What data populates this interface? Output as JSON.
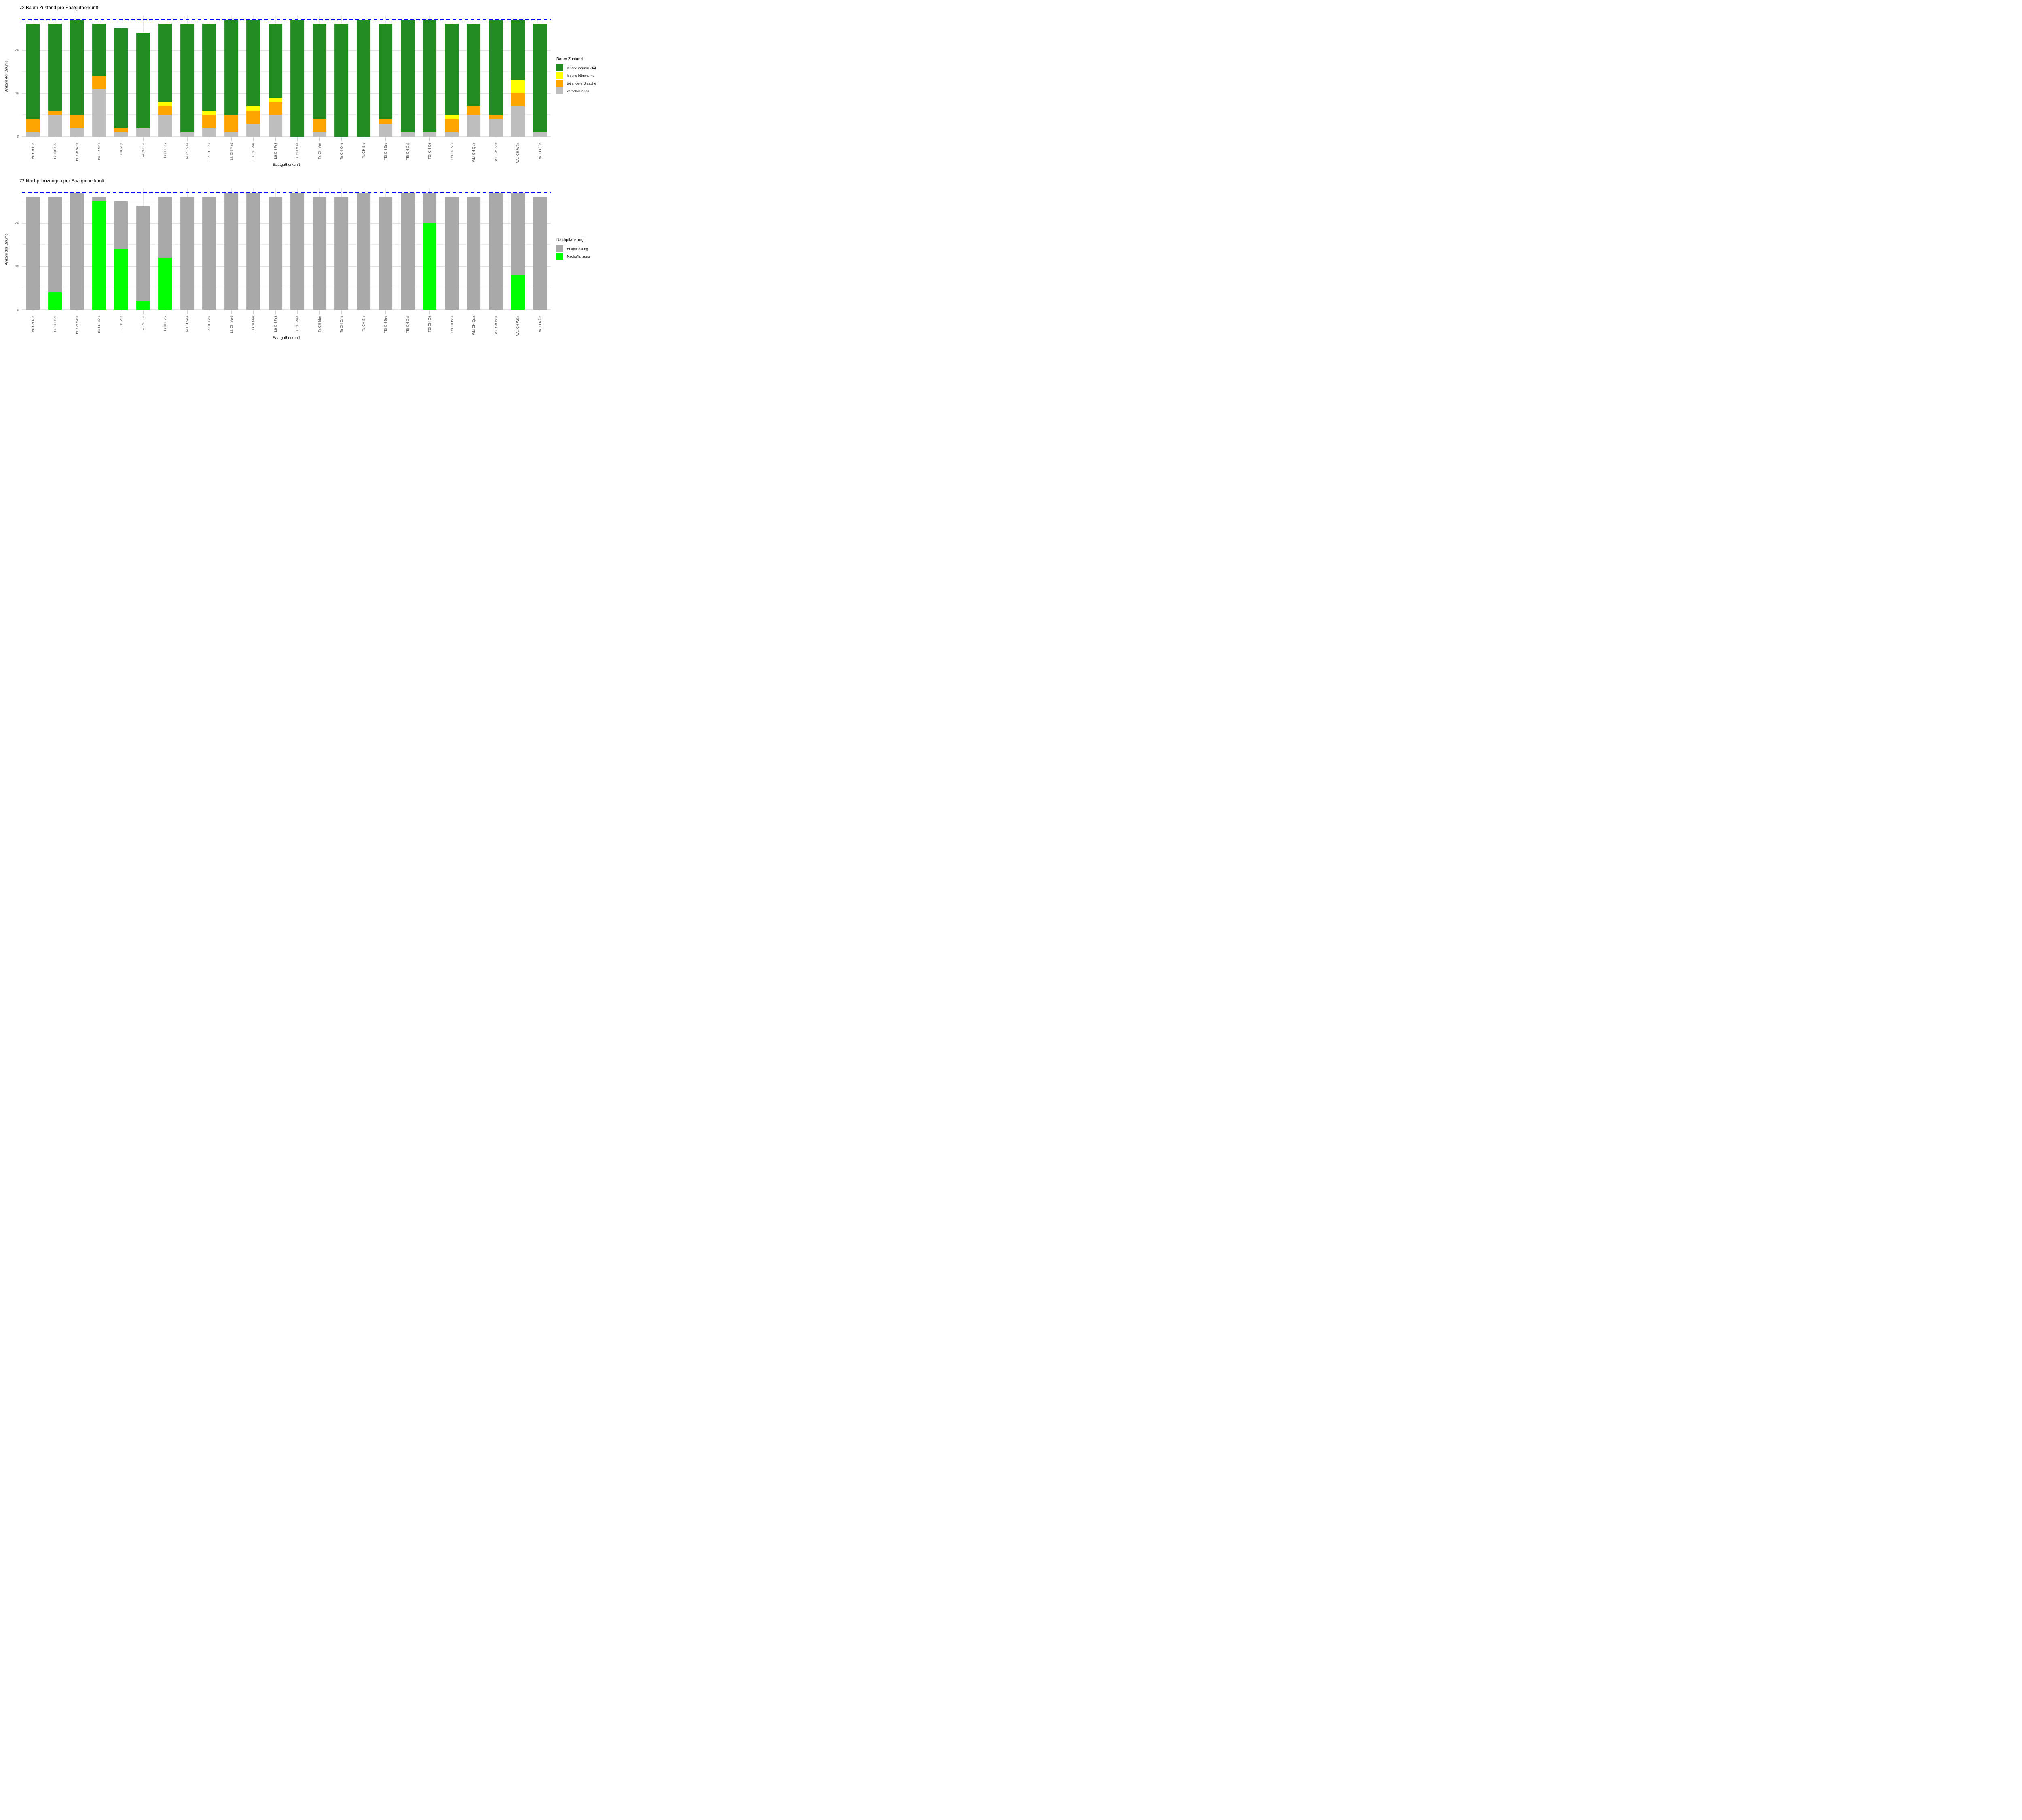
{
  "chart_data": [
    {
      "type": "bar",
      "stacked": true,
      "title": "72 Baum Zustand pro Saatgutherkunft",
      "xlabel": "Saatgutherkunft",
      "ylabel": "Anzahl der Bäume",
      "ylim": [
        0,
        28
      ],
      "yticks": [
        0,
        10,
        20
      ],
      "grid_minor": [
        5,
        15,
        25
      ],
      "grid": true,
      "reference_line": {
        "value": 27,
        "color": "#0000ff",
        "style": "dashed"
      },
      "categories": [
        "Bu CH Die",
        "Bu CH Sai",
        "Bu CH Woh",
        "Bu FR Mas",
        "Fi CH Alp",
        "Fi CH Evi",
        "Fi CH Lav",
        "Fi CH See",
        "Lä CH Leu",
        "Lä CH Mad",
        "Lä CH Mar",
        "Lä CH Prä",
        "Ta CH Mad",
        "Ta CH Mar",
        "Ta CH Ons",
        "Ta CH Sie",
        "TEi CH Bru",
        "TEi CH Gal",
        "TEi CH Olt",
        "TEi FR Bas",
        "WLi CH Qua",
        "WLi CH Sch",
        "WLi CH Wün",
        "WLi FR Île"
      ],
      "series": [
        {
          "name": "verschwunden",
          "color": "#bebebe",
          "values": [
            1,
            5,
            2,
            11,
            1,
            2,
            5,
            1,
            2,
            1,
            3,
            5,
            0,
            1,
            0,
            0,
            3,
            1,
            1,
            1,
            5,
            4,
            7,
            1
          ]
        },
        {
          "name": "tot andere Ursache",
          "color": "#ffa500",
          "values": [
            3,
            1,
            3,
            3,
            1,
            0,
            2,
            0,
            3,
            4,
            3,
            3,
            0,
            3,
            0,
            0,
            1,
            0,
            0,
            3,
            2,
            1,
            3,
            0
          ]
        },
        {
          "name": "lebend kümmernd",
          "color": "#ffff00",
          "values": [
            0,
            0,
            0,
            0,
            0,
            0,
            1,
            0,
            1,
            0,
            1,
            1,
            0,
            0,
            0,
            0,
            0,
            0,
            0,
            1,
            0,
            0,
            3,
            0
          ]
        },
        {
          "name": "lebend normal vital",
          "color": "#228b22",
          "values": [
            22,
            20,
            22,
            12,
            23,
            22,
            18,
            25,
            20,
            22,
            20,
            17,
            27,
            22,
            26,
            27,
            22,
            26,
            26,
            21,
            19,
            22,
            14,
            25
          ]
        }
      ],
      "totals": [
        26,
        26,
        27,
        26,
        25,
        24,
        26,
        26,
        26,
        27,
        27,
        26,
        27,
        26,
        26,
        27,
        26,
        27,
        27,
        26,
        26,
        27,
        27,
        26
      ],
      "legend": {
        "title": "Baum Zustand",
        "position": "right",
        "entries": [
          {
            "label": "lebend normal vital",
            "color": "#228b22"
          },
          {
            "label": "lebend kümmernd",
            "color": "#ffff00"
          },
          {
            "label": "tot andere Ursache",
            "color": "#ffa500"
          },
          {
            "label": "verschwunden",
            "color": "#bebebe"
          }
        ]
      }
    },
    {
      "type": "bar",
      "stacked": true,
      "title": "72 Nachpflanzungen pro Saatgutherkunft",
      "xlabel": "Saatgutherkunft",
      "ylabel": "Anzahl der Bäume",
      "ylim": [
        0,
        28
      ],
      "yticks": [
        0,
        10,
        20
      ],
      "grid_minor": [
        5,
        15,
        25
      ],
      "grid": true,
      "reference_line": {
        "value": 27,
        "color": "#0000ff",
        "style": "dashed"
      },
      "categories": [
        "Bu CH Die",
        "Bu CH Sai",
        "Bu CH Woh",
        "Bu FR Mas",
        "Fi CH Alp",
        "Fi CH Evi",
        "Fi CH Lav",
        "Fi CH See",
        "Lä CH Leu",
        "Lä CH Mad",
        "Lä CH Mar",
        "Lä CH Prä",
        "Ta CH Mad",
        "Ta CH Mar",
        "Ta CH Ons",
        "Ta CH Sie",
        "TEi CH Bru",
        "TEi CH Gal",
        "TEi CH Olt",
        "TEi FR Bas",
        "WLi CH Qua",
        "WLi CH Sch",
        "WLi CH Wün",
        "WLi FR Île"
      ],
      "series": [
        {
          "name": "Nachpflanzung",
          "color": "#00ff00",
          "values": [
            0,
            4,
            0,
            25,
            14,
            2,
            12,
            0,
            0,
            0,
            0,
            0,
            0,
            0,
            0,
            0,
            0,
            0,
            20,
            0,
            0,
            0,
            8,
            0
          ]
        },
        {
          "name": "Erstpflanzung",
          "color": "#a9a9a9",
          "values": [
            26,
            22,
            27,
            1,
            11,
            22,
            14,
            26,
            26,
            27,
            27,
            26,
            27,
            26,
            26,
            27,
            26,
            27,
            7,
            26,
            26,
            27,
            19,
            26
          ]
        }
      ],
      "totals": [
        26,
        26,
        27,
        26,
        25,
        24,
        26,
        26,
        26,
        27,
        27,
        26,
        27,
        26,
        26,
        27,
        26,
        27,
        27,
        26,
        26,
        27,
        27,
        26
      ],
      "legend": {
        "title": "Nachpflanzung",
        "position": "right",
        "entries": [
          {
            "label": "Erstpflanzung",
            "color": "#a9a9a9"
          },
          {
            "label": "Nachpflanzung",
            "color": "#00ff00"
          }
        ]
      }
    }
  ]
}
